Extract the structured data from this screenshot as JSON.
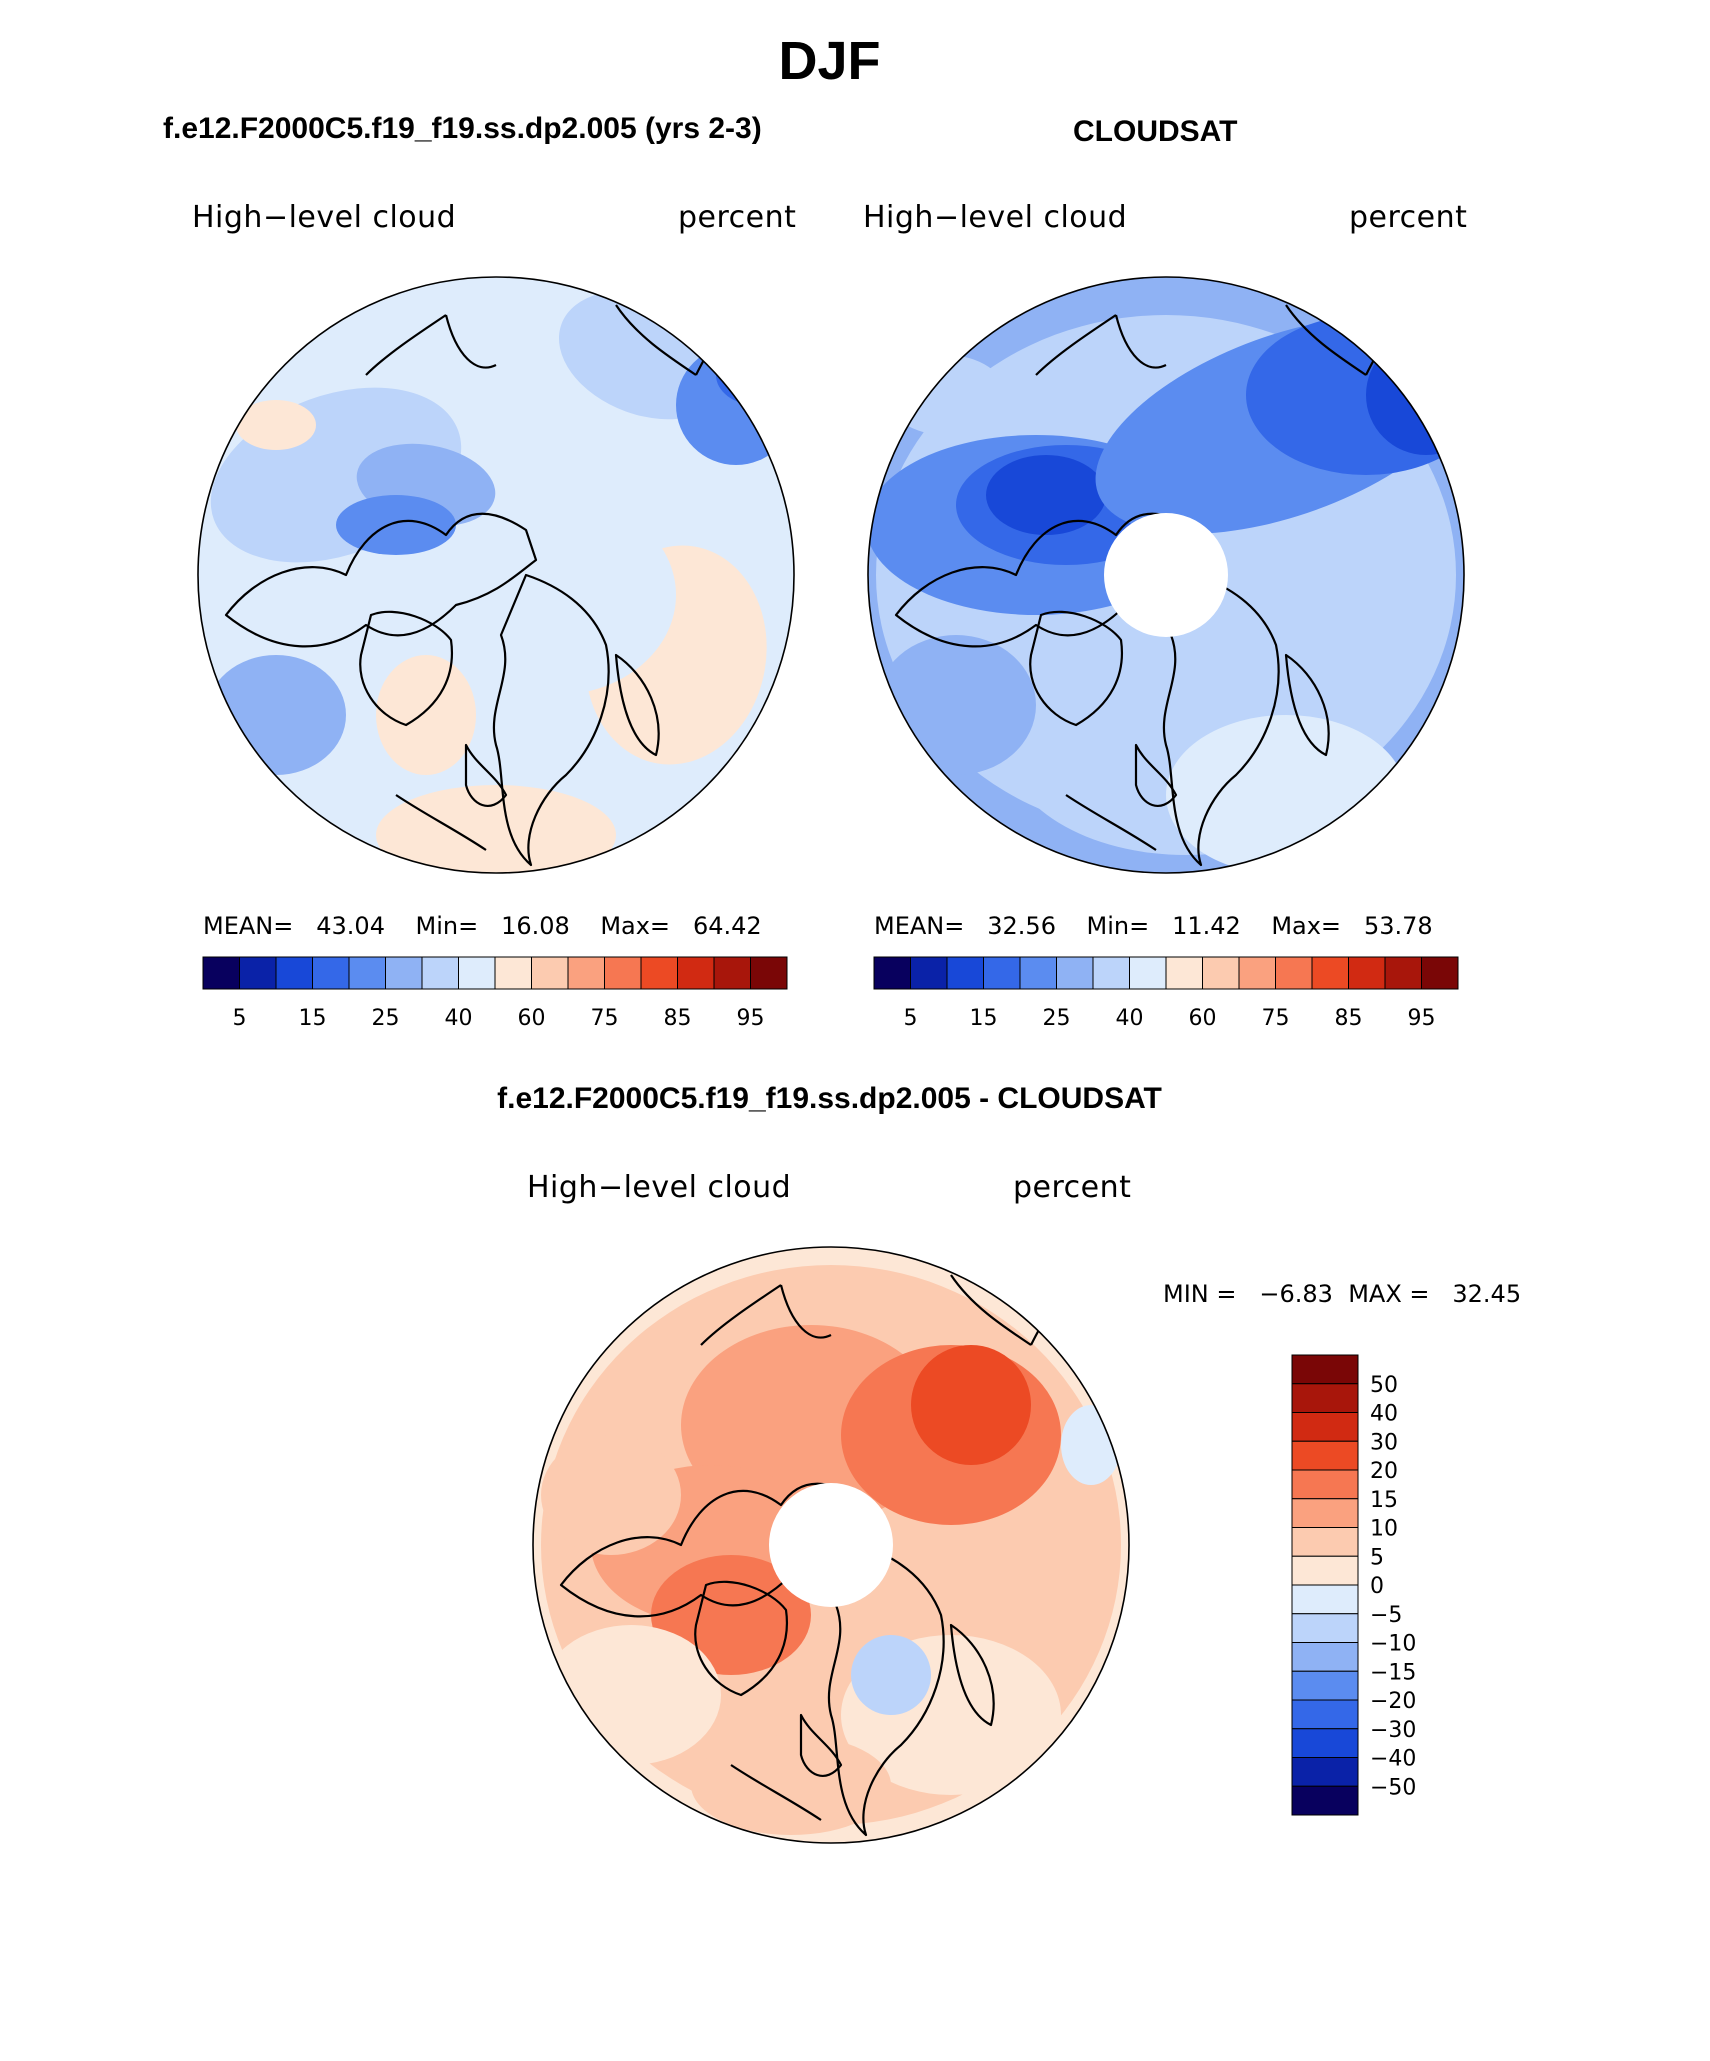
{
  "title": "DJF",
  "palette": {
    "abs": [
      "#08005e",
      "#0a22a8",
      "#1848d8",
      "#3468e8",
      "#5b8cf0",
      "#8fb2f4",
      "#bcd4fa",
      "#deecfc",
      "#fde7d6",
      "#fccbb0",
      "#faa17f",
      "#f67752",
      "#ec4a24",
      "#d12a12",
      "#a8160b",
      "#7a0606"
    ],
    "diff": [
      "#08005e",
      "#0a22a8",
      "#1848d8",
      "#3468e8",
      "#5b8cf0",
      "#8fb2f4",
      "#bcd4fa",
      "#deecfc",
      "#fde7d6",
      "#fccbb0",
      "#faa17f",
      "#f67752",
      "#ec4a24",
      "#d12a12",
      "#a8160b",
      "#7a0606"
    ]
  },
  "chart_data": [
    {
      "type": "heatmap",
      "title": "f.e12.F2000C5.f19_f19.ss.dp2.005 (yrs 2-3)",
      "variable": "High−level cloud",
      "units": "percent",
      "projection": "polar-stereographic north",
      "stats": {
        "mean_label": "MEAN=",
        "mean": "43.04",
        "min_label": "Min=",
        "min": "16.08",
        "max_label": "Max=",
        "max": "64.42"
      },
      "levels": [
        "5",
        "15",
        "25",
        "40",
        "60",
        "75",
        "85",
        "95"
      ],
      "legend_placement": "bottom"
    },
    {
      "type": "heatmap",
      "title": "CLOUDSAT",
      "variable": "High−level cloud",
      "units": "percent",
      "projection": "polar-stereographic north",
      "stats": {
        "mean_label": "MEAN=",
        "mean": "32.56",
        "min_label": "Min=",
        "min": "11.42",
        "max_label": "Max=",
        "max": "53.78"
      },
      "levels": [
        "5",
        "15",
        "25",
        "40",
        "60",
        "75",
        "85",
        "95"
      ],
      "legend_placement": "bottom"
    },
    {
      "type": "heatmap",
      "title": "f.e12.F2000C5.f19_f19.ss.dp2.005 - CLOUDSAT",
      "variable": "High−level cloud",
      "units": "percent",
      "projection": "polar-stereographic north",
      "stats": {
        "min_label": "MIN =",
        "min": "−6.83",
        "max_label": "MAX =",
        "max": "32.45"
      },
      "levels": [
        "50",
        "40",
        "30",
        "20",
        "15",
        "10",
        "5",
        "0",
        "−5",
        "−10",
        "−15",
        "−20",
        "−30",
        "−40",
        "−50"
      ],
      "legend_placement": "right"
    }
  ]
}
